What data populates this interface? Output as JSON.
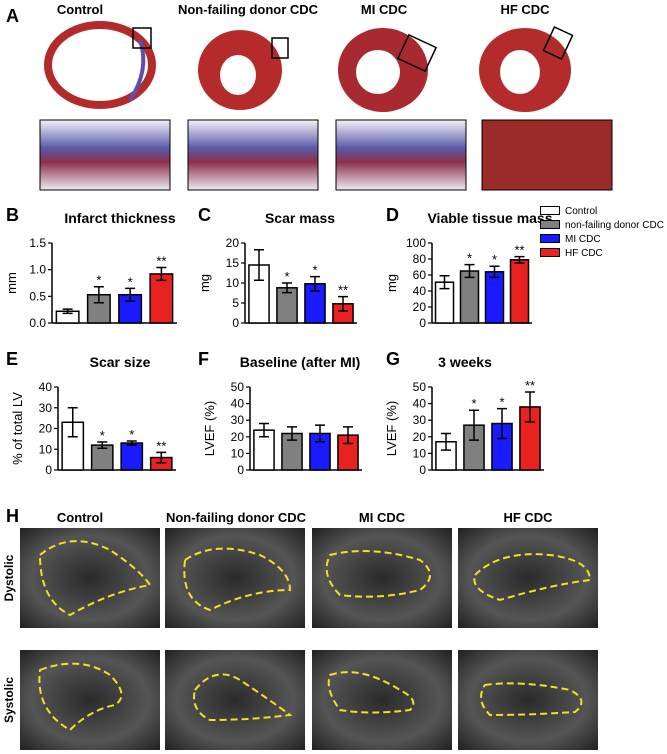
{
  "panel_a": {
    "letter": "A",
    "labels": [
      "Control",
      "Non-failing donor CDC",
      "MI CDC",
      "HF CDC"
    ]
  },
  "legend": {
    "labels": [
      "Control",
      "non-failing donor CDC",
      "MI CDC",
      "HF CDC"
    ],
    "colors": [
      "#ffffff",
      "#808080",
      "#1a1aff",
      "#e8231f"
    ]
  },
  "chart_data": [
    {
      "type": "bar",
      "letter": "B",
      "title": "Infarct thickness",
      "y_label": "mm",
      "values": [
        0.22,
        0.53,
        0.53,
        0.92
      ],
      "errors": [
        0.04,
        0.15,
        0.12,
        0.12
      ],
      "stars": [
        null,
        "*",
        "*",
        "**"
      ],
      "colors": [
        "#ffffff",
        "#808080",
        "#1a1aff",
        "#e8231f"
      ],
      "ylim": [
        0,
        1.5
      ],
      "yticks": [
        {
          "value": 0,
          "label": "0.0"
        },
        0.5,
        {
          "value": 1,
          "label": "1.0"
        },
        1.5
      ]
    },
    {
      "type": "bar",
      "letter": "C",
      "title": "Scar mass",
      "y_label": "mg",
      "values": [
        14.5,
        8.8,
        9.8,
        4.8
      ],
      "errors": [
        3.8,
        1.2,
        1.8,
        1.8
      ],
      "stars": [
        null,
        "*",
        "*",
        "**"
      ],
      "colors": [
        "#ffffff",
        "#808080",
        "#1a1aff",
        "#e8231f"
      ],
      "ylim": [
        0,
        20
      ],
      "yticks": [
        0,
        5,
        10,
        15,
        20
      ]
    },
    {
      "type": "bar",
      "letter": "D",
      "title": "Viable tissue mass",
      "y_label": "mg",
      "values": [
        51,
        65,
        64,
        79
      ],
      "errors": [
        8,
        8,
        7,
        4
      ],
      "stars": [
        null,
        "*",
        "*",
        "**"
      ],
      "colors": [
        "#ffffff",
        "#808080",
        "#1a1aff",
        "#e8231f"
      ],
      "ylim": [
        0,
        100
      ],
      "yticks": [
        0,
        20,
        40,
        60,
        80,
        100
      ]
    },
    {
      "type": "bar",
      "letter": "E",
      "title": "Scar size",
      "y_label": "% of total LV",
      "values": [
        23,
        12,
        13,
        6
      ],
      "errors": [
        7,
        1.5,
        1,
        2.5
      ],
      "stars": [
        null,
        "*",
        "*",
        "**"
      ],
      "colors": [
        "#ffffff",
        "#808080",
        "#1a1aff",
        "#e8231f"
      ],
      "ylim": [
        0,
        40
      ],
      "yticks": [
        0,
        10,
        20,
        30,
        40
      ]
    },
    {
      "type": "bar",
      "letter": "F",
      "title": "Baseline (after MI)",
      "y_label": "LVEF (%)",
      "values": [
        24,
        22,
        22,
        21
      ],
      "errors": [
        4,
        4,
        5,
        5
      ],
      "colors": [
        "#ffffff",
        "#808080",
        "#1a1aff",
        "#e8231f"
      ],
      "ylim": [
        0,
        50
      ],
      "yticks": [
        0,
        10,
        20,
        30,
        40,
        50
      ]
    },
    {
      "type": "bar",
      "letter": "G",
      "title": "3 weeks",
      "y_label": "LVEF (%)",
      "values": [
        17,
        27,
        28,
        38
      ],
      "errors": [
        5,
        9,
        9,
        9
      ],
      "stars": [
        null,
        "*",
        "*",
        "**"
      ],
      "colors": [
        "#ffffff",
        "#808080",
        "#1a1aff",
        "#e8231f"
      ],
      "ylim": [
        0,
        50
      ],
      "yticks": [
        0,
        10,
        20,
        30,
        40,
        50
      ]
    }
  ],
  "panel_h": {
    "letter": "H",
    "columns": [
      "Control",
      "Non-failing donor CDC",
      "MI CDC",
      "HF CDC"
    ],
    "rows": [
      "Dystolic",
      "Systolic"
    ]
  }
}
